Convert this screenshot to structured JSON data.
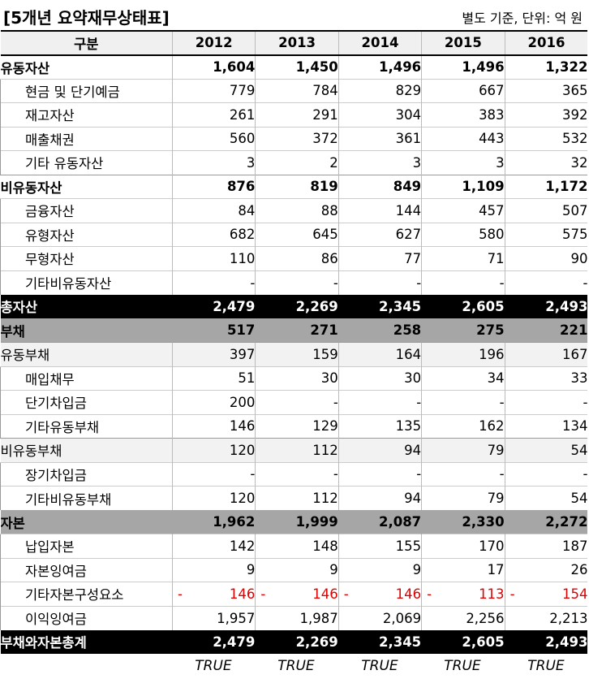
{
  "title": "[5개년 요약재무상태표]",
  "unit_note": "별도 기준, 단위: 억 원",
  "header": {
    "label": "구분",
    "years": [
      "2012",
      "2013",
      "2014",
      "2015",
      "2016"
    ]
  },
  "rows": [
    {
      "label": "유동자산",
      "style": "bold",
      "values": [
        "1,604",
        "1,450",
        "1,496",
        "1,496",
        "1,322"
      ]
    },
    {
      "label": "현금 및 단기예금",
      "style": "sub",
      "values": [
        "779",
        "784",
        "829",
        "667",
        "365"
      ]
    },
    {
      "label": "재고자산",
      "style": "sub",
      "values": [
        "261",
        "291",
        "304",
        "383",
        "392"
      ]
    },
    {
      "label": "매출채권",
      "style": "sub",
      "values": [
        "560",
        "372",
        "361",
        "443",
        "532"
      ]
    },
    {
      "label": "기타 유동자산",
      "style": "sub",
      "values": [
        "3",
        "2",
        "3",
        "3",
        "32"
      ]
    },
    {
      "label": "비유동자산",
      "style": "bold",
      "values": [
        "876",
        "819",
        "849",
        "1,109",
        "1,172"
      ]
    },
    {
      "label": "금융자산",
      "style": "sub",
      "values": [
        "84",
        "88",
        "144",
        "457",
        "507"
      ]
    },
    {
      "label": "유형자산",
      "style": "sub",
      "values": [
        "682",
        "645",
        "627",
        "580",
        "575"
      ]
    },
    {
      "label": "무형자산",
      "style": "sub",
      "values": [
        "110",
        "86",
        "77",
        "71",
        "90"
      ]
    },
    {
      "label": "기타비유동자산",
      "style": "sub",
      "values": [
        "-",
        "-",
        "-",
        "-",
        "-"
      ]
    },
    {
      "label": "총자산",
      "style": "black",
      "values": [
        "2,479",
        "2,269",
        "2,345",
        "2,605",
        "2,493"
      ]
    },
    {
      "label": "부채",
      "style": "gray",
      "values": [
        "517",
        "271",
        "258",
        "275",
        "221"
      ]
    },
    {
      "label": "유동부채",
      "style": "light",
      "values": [
        "397",
        "159",
        "164",
        "196",
        "167"
      ]
    },
    {
      "label": "매입채무",
      "style": "sub",
      "values": [
        "51",
        "30",
        "30",
        "34",
        "33"
      ]
    },
    {
      "label": "단기차입금",
      "style": "sub",
      "values": [
        "200",
        "-",
        "-",
        "-",
        "-"
      ]
    },
    {
      "label": "기타유동부채",
      "style": "sub",
      "values": [
        "146",
        "129",
        "135",
        "162",
        "134"
      ]
    },
    {
      "label": "비유동부채",
      "style": "light",
      "values": [
        "120",
        "112",
        "94",
        "79",
        "54"
      ]
    },
    {
      "label": "장기차입금",
      "style": "sub",
      "values": [
        "-",
        "-",
        "-",
        "-",
        "-"
      ]
    },
    {
      "label": "기타비유동부채",
      "style": "sub",
      "values": [
        "120",
        "112",
        "94",
        "79",
        "54"
      ]
    },
    {
      "label": "자본",
      "style": "gray",
      "values": [
        "1,962",
        "1,999",
        "2,087",
        "2,330",
        "2,272"
      ]
    },
    {
      "label": "납입자본",
      "style": "sub",
      "values": [
        "142",
        "148",
        "155",
        "170",
        "187"
      ]
    },
    {
      "label": "자본잉여금",
      "style": "sub",
      "values": [
        "9",
        "9",
        "9",
        "17",
        "26"
      ]
    },
    {
      "label": "기타자본구성요소",
      "style": "sub",
      "negative": true,
      "values": [
        "146",
        "146",
        "146",
        "113",
        "154"
      ]
    },
    {
      "label": "이익잉여금",
      "style": "sub",
      "values": [
        "1,957",
        "1,987",
        "2,069",
        "2,256",
        "2,213"
      ]
    },
    {
      "label": "부채와자본총계",
      "style": "black",
      "values": [
        "2,479",
        "2,269",
        "2,345",
        "2,605",
        "2,493"
      ]
    }
  ],
  "negative_sign": "-",
  "footer_checks": [
    "TRUE",
    "TRUE",
    "TRUE",
    "TRUE",
    "TRUE"
  ],
  "colors": {
    "negative": "#e00000",
    "black_row": "#000000",
    "gray_row": "#a6a6a6",
    "header_bg": "#f0f0f0"
  }
}
